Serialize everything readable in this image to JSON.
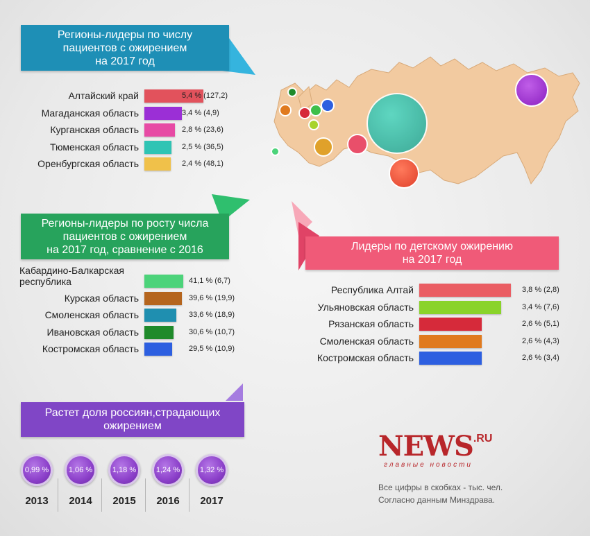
{
  "chart_data": [
    {
      "type": "bar",
      "title": "Регионы-лидеры по числу пациентов с ожирением на 2017 год",
      "categories": [
        "Алтайский край",
        "Магаданская область",
        "Курганская область",
        "Тюменская область",
        "Оренбургская область"
      ],
      "values": [
        5.4,
        3.4,
        2.8,
        2.5,
        2.4
      ],
      "labels": [
        "5,4 %",
        "3,4 %",
        "2,8 %",
        "2,5 %",
        "2,4 %"
      ],
      "counts": [
        "(127,2)",
        "(4,9)",
        "(23,6)",
        "(36,5)",
        "(48,1)"
      ],
      "colors": [
        "#e2525c",
        "#9b2fd6",
        "#e74aa4",
        "#2fc4b4",
        "#f0c14a"
      ]
    },
    {
      "type": "bar",
      "title": "Регионы-лидеры по росту числа пациентов с ожирением на 2017 год, сравнение с 2016",
      "categories": [
        "Кабардино-Балкарская республика",
        "Курская область",
        "Смоленская область",
        "Ивановская область",
        "Костромская область"
      ],
      "values": [
        41.1,
        39.6,
        33.6,
        30.6,
        29.5
      ],
      "labels": [
        "41,1 %",
        "39,6 %",
        "33,6 %",
        "30,6 %",
        "29,5 %"
      ],
      "counts": [
        "(6,7)",
        "(19,9)",
        "(18,9)",
        "(10,7)",
        "(10,9)"
      ],
      "colors": [
        "#4cd37a",
        "#b5651e",
        "#1f8fb0",
        "#1f8a2a",
        "#2d5fe0"
      ]
    },
    {
      "type": "bar",
      "title": "Лидеры по детскому ожирению на 2017 год",
      "categories": [
        "Республика Алтай",
        "Ульяновская область",
        "Рязанская область",
        "Смоленская область",
        "Костромская область"
      ],
      "values": [
        3.8,
        3.4,
        2.6,
        2.6,
        2.6
      ],
      "labels": [
        "3,8 %",
        "3,4 %",
        "2,6 %",
        "2,6 %",
        "2,6 %"
      ],
      "counts": [
        "(2,8)",
        "(7,6)",
        "(5,1)",
        "(4,3)",
        "(3,4)"
      ],
      "colors": [
        "#ea5d63",
        "#8ad32a",
        "#d62a3a",
        "#e07a1e",
        "#2d5fe0"
      ]
    },
    {
      "type": "bar",
      "title": "Растет доля россиян,страдающих ожирением",
      "categories": [
        "2013",
        "2014",
        "2015",
        "2016",
        "2017"
      ],
      "values": [
        0.99,
        1.06,
        1.18,
        1.24,
        1.32
      ],
      "labels": [
        "0,99 %",
        "1,06 %",
        "1,18 %",
        "1,24 %",
        "1,32 %"
      ]
    }
  ],
  "banners": {
    "b1": [
      "Регионы-лидеры по числу",
      "пациентов с ожирением",
      "на 2017 год"
    ],
    "b2": [
      "Регионы-лидеры по росту числа",
      "пациентов с ожирением",
      "на 2017 год, сравнение с 2016"
    ],
    "b3": [
      "Лидеры по детскому ожирению",
      "на 2017 год"
    ],
    "b4": [
      "Растет доля россиян,страдающих",
      "ожирением"
    ]
  },
  "colors": {
    "teal_banner": "#1e8fb6",
    "green_banner": "#27a35c",
    "pink_banner": "#f05a78",
    "purple_banner": "#8046c6",
    "map": "#f2caa0"
  },
  "logo": {
    "news": "NEWS",
    "ru": ".RU",
    "tagline": "главные новости"
  },
  "notes": {
    "line1": "Все цифры в скобках - тыс. чел.",
    "line2": "Согласно данным Минздрава."
  }
}
